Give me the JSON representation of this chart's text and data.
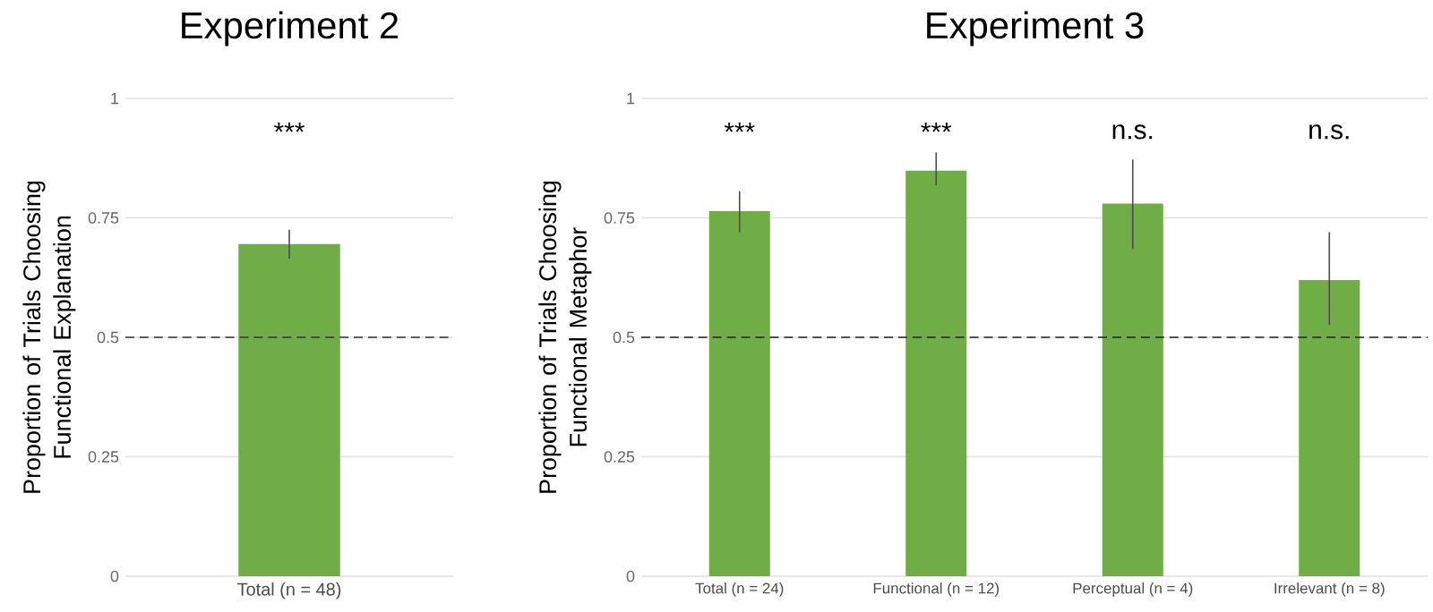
{
  "chart_data": [
    {
      "type": "bar",
      "title": "Experiment 2",
      "ylabel": "Proportion of Trials Choosing Functional Explanation",
      "categories": [
        "Total (n = 48)"
      ],
      "series": [
        {
          "color": "#70ad47",
          "values": [
            0.695
          ],
          "errors": [
            [
              0.665,
              0.725
            ]
          ]
        }
      ],
      "ylim": [
        0,
        1
      ],
      "yticks": [
        0,
        0.25,
        0.5,
        0.75,
        1
      ],
      "grid": "y",
      "ref_lines": [
        {
          "axis": "y",
          "value": 0.5,
          "line_style": "dashed",
          "color": "#333333"
        }
      ],
      "annotations": [
        "***"
      ]
    },
    {
      "type": "bar",
      "title": "Experiment 3",
      "ylabel": "Proportion of Trials Choosing Functional Metaphor",
      "categories": [
        "Total (n = 24)",
        "Functional (n = 12)",
        "Perceptual (n = 4)",
        "Irrelevant (n = 8)"
      ],
      "series": [
        {
          "color": "#70ad47",
          "values": [
            0.764,
            0.849,
            0.78,
            0.62
          ],
          "errors": [
            [
              0.72,
              0.806
            ],
            [
              0.818,
              0.887
            ],
            [
              0.685,
              0.872
            ],
            [
              0.526,
              0.72
            ]
          ]
        }
      ],
      "ylim": [
        0,
        1
      ],
      "yticks": [
        0,
        0.25,
        0.5,
        0.75,
        1
      ],
      "grid": "y",
      "ref_lines": [
        {
          "axis": "y",
          "value": 0.5,
          "line_style": "dashed",
          "color": "#222222"
        }
      ],
      "annotations": [
        "***",
        "***",
        "n.s.",
        "n.s."
      ]
    }
  ]
}
